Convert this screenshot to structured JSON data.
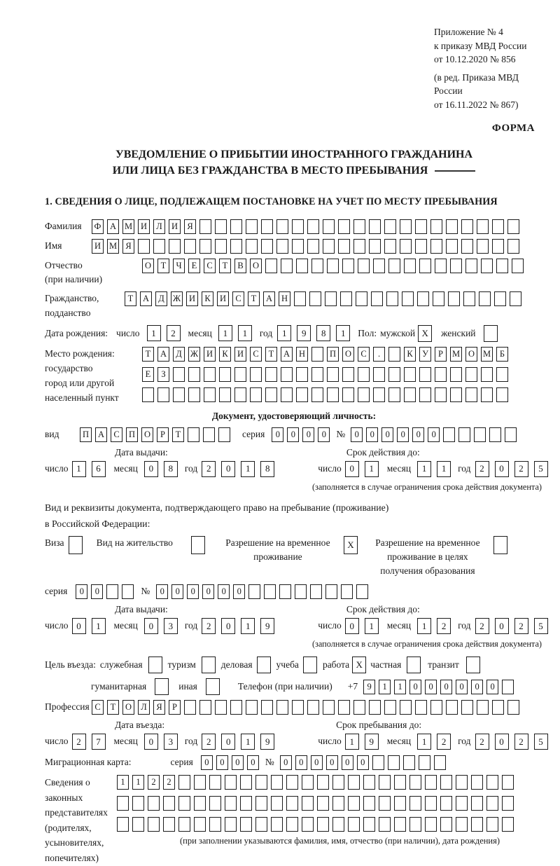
{
  "page": {
    "appendix": [
      "Приложение № 4",
      "к приказу МВД России",
      "от 10.12.2020 № 856"
    ],
    "amendment": [
      "(в ред. Приказа МВД России",
      "от 16.11.2022 № 867)"
    ],
    "form_label": "ФОРМА",
    "title_line1": "УВЕДОМЛЕНИЕ О ПРИБЫТИИ ИНОСТРАННОГО ГРАЖДАНИНА",
    "title_line2": "ИЛИ ЛИЦА БЕЗ ГРАЖДАНСТВА В МЕСТО ПРЕБЫВАНИЯ",
    "section1_heading": "1. СВЕДЕНИЯ О ЛИЦЕ, ПОДЛЕЖАЩЕМ ПОСТАНОВКЕ НА УЧЕТ ПО МЕСТУ ПРЕБЫВАНИЯ"
  },
  "labels": {
    "day": "число",
    "month": "месяц",
    "year": "год",
    "series": "серия",
    "number": "№"
  },
  "person": {
    "surname_label": "Фамилия",
    "surname": {
      "text": "ФАМИЛИЯ",
      "len": 28
    },
    "name_label": "Имя",
    "name": {
      "text": "ИМЯ",
      "len": 28
    },
    "patronymic_label1": "Отчество",
    "patronymic_label2": "(при наличии)",
    "patronymic": {
      "text": "ОТЧЕСТВО",
      "len": 25
    },
    "citizenship_label1": "Гражданство,",
    "citizenship_label2": "подданство",
    "citizenship": {
      "text": "ТАДЖИКИСТАН",
      "len": 26
    },
    "birth_date_label": "Дата рождения:",
    "birth_day": {
      "text": "12",
      "len": 2
    },
    "birth_month": {
      "text": "11",
      "len": 2
    },
    "birth_year": {
      "text": "1981",
      "len": 4
    },
    "sex_label": "Пол:",
    "male_label": "мужской",
    "male_box": {
      "text": "X",
      "len": 1
    },
    "female_label": "женский",
    "female_box": {
      "text": "",
      "len": 1
    },
    "birth_place_label": "Место рождения:",
    "birth_place_sub1": "государство",
    "birth_place_sub2": "город или другой",
    "birth_place_sub3": "населенный пункт",
    "birth_place_row1": {
      "text": "ТАДЖИКИСТАН ПОС. КУРМОМБ",
      "len": 24
    },
    "birth_place_row2": {
      "text": "ЕЗ",
      "len": 24
    },
    "birth_place_row3": {
      "text": "",
      "len": 24
    }
  },
  "identity_doc": {
    "heading": "Документ, удостоверяющий личность:",
    "kind_label": "вид",
    "kind": {
      "text": "ПАСПОРТ",
      "len": 10
    },
    "series": {
      "text": "0000",
      "len": 4
    },
    "number": {
      "text": "000000",
      "len": 11
    },
    "issue_heading": "Дата выдачи:",
    "issue_day": {
      "text": "16",
      "len": 2
    },
    "issue_month": {
      "text": "08",
      "len": 2
    },
    "issue_year": {
      "text": "2018",
      "len": 4
    },
    "valid_heading": "Срок действия до:",
    "valid_day": {
      "text": "01",
      "len": 2
    },
    "valid_month": {
      "text": "11",
      "len": 2
    },
    "valid_year": {
      "text": "2025",
      "len": 4
    },
    "valid_note": "(заполняется в случае ограничения срока действия документа)"
  },
  "residence_doc": {
    "intro_line1": "Вид и реквизиты документа, подтверждающего право на пребывание (проживание)",
    "intro_line2": "в Российской Федерации:",
    "options": [
      {
        "label": "Виза",
        "box": {
          "text": "",
          "len": 1
        }
      },
      {
        "label": "Вид на жительство",
        "box": {
          "text": "",
          "len": 1
        }
      },
      {
        "label": "Разрешение на временное проживание",
        "box": {
          "text": "X",
          "len": 1
        }
      },
      {
        "label": "Разрешение на временное проживание в целях получения образования",
        "box": {
          "text": "",
          "len": 1
        }
      }
    ],
    "series": {
      "text": "00",
      "len": 4
    },
    "number": {
      "text": "000000",
      "len": 14
    },
    "issue_heading": "Дата выдачи:",
    "issue_day": {
      "text": "01",
      "len": 2
    },
    "issue_month": {
      "text": "03",
      "len": 2
    },
    "issue_year": {
      "text": "2019",
      "len": 4
    },
    "valid_heading": "Срок действия до:",
    "valid_day": {
      "text": "01",
      "len": 2
    },
    "valid_month": {
      "text": "12",
      "len": 2
    },
    "valid_year": {
      "text": "2025",
      "len": 4
    },
    "valid_note": "(заполняется в случае ограничения срока действия документа)"
  },
  "visit": {
    "purpose_label": "Цель въезда:",
    "purposes": [
      {
        "label": "служебная",
        "box": {
          "text": "",
          "len": 1
        }
      },
      {
        "label": "туризм",
        "box": {
          "text": "",
          "len": 1
        }
      },
      {
        "label": "деловая",
        "box": {
          "text": "",
          "len": 1
        }
      },
      {
        "label": "учеба",
        "box": {
          "text": "",
          "len": 1
        }
      },
      {
        "label": "работа",
        "box": {
          "text": "X",
          "len": 1
        }
      },
      {
        "label": "частная",
        "box": {
          "text": "",
          "len": 1
        }
      },
      {
        "label": "транзит",
        "box": {
          "text": "",
          "len": 1
        }
      },
      {
        "label": "гуманитарная",
        "box": {
          "text": "",
          "len": 1
        }
      },
      {
        "label": "иная",
        "box": {
          "text": "",
          "len": 1
        }
      }
    ],
    "phone_label": "Телефон (при наличии)",
    "phone_prefix": "+7",
    "phone": {
      "text": "911000000",
      "len": 10
    },
    "profession_label": "Профессия",
    "profession": {
      "text": "СТОЛЯР",
      "len": 28
    },
    "entry_heading": "Дата въезда:",
    "entry_day": {
      "text": "27",
      "len": 2
    },
    "entry_month": {
      "text": "03",
      "len": 2
    },
    "entry_year": {
      "text": "2019",
      "len": 4
    },
    "stay_heading": "Срок пребывания до:",
    "stay_day": {
      "text": "19",
      "len": 2
    },
    "stay_month": {
      "text": "12",
      "len": 2
    },
    "stay_year": {
      "text": "2025",
      "len": 4
    },
    "migration_card_label": "Миграционная карта:",
    "migration_series": {
      "text": "0000",
      "len": 4
    },
    "migration_number": {
      "text": "000000",
      "len": 11
    },
    "rep_label1": "Сведения о",
    "rep_label2": "законных",
    "rep_label3": "представителях",
    "rep_label4": "(родителях,",
    "rep_label5": "усыновителях,",
    "rep_label6": "попечителях)",
    "rep_row1": {
      "text": "1122",
      "len": 26
    },
    "rep_row2": {
      "text": "",
      "len": 26
    },
    "rep_row3": {
      "text": "",
      "len": 26
    },
    "rep_note": "(при заполнении указываются фамилия, имя, отчество (при наличии), дата рождения)"
  }
}
